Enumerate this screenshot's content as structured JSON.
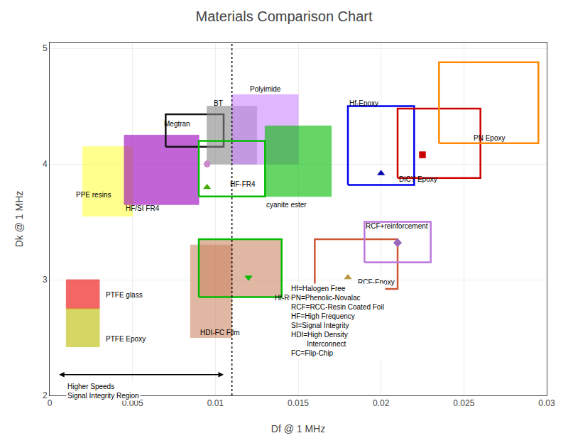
{
  "chart_data": {
    "type": "region",
    "title": "Materials Comparison Chart",
    "xlabel": "Df @ 1 MHz",
    "ylabel": "Dk @ 1 MHz",
    "xlim": [
      0,
      0.03
    ],
    "ylim": [
      2.0,
      5.05
    ],
    "xticks": [
      0,
      0.005,
      0.01,
      0.015,
      0.02,
      0.025,
      0.03
    ],
    "yticks": [
      2,
      3,
      4,
      5
    ],
    "grid": true,
    "vlines": [
      {
        "x": 0.011,
        "line_style": "dotted"
      }
    ],
    "arrows": [
      {
        "x_start": 0.0005,
        "x_end": 0.0105,
        "y": 2.18
      }
    ],
    "annotations": [
      {
        "text": "Higher Speeds\nSignal Integrity Region",
        "x": 0.001,
        "y": 2.12
      },
      {
        "text": "Hf=Halogen Free\nPN=Phenolic-Novalac\nRCF=RCC-Resin Coated Foil\nHF=High Frequency\nSI=Signal Integrity\nHDI=High Density\n        Interconnect\nFC=Flip-Chip",
        "x": 0.0145,
        "y": 2.97
      }
    ],
    "series": [
      {
        "name": "PTFE glass",
        "label_x": 0.0033,
        "label_y": 2.82,
        "rects": [
          {
            "x0": 0.001,
            "y0": 2.75,
            "x1": 0.003,
            "y1": 3.0,
            "color": "#EE0000",
            "type": "filled"
          }
        ],
        "markers": []
      },
      {
        "name": "PTFE Epoxy",
        "label_x": 0.0033,
        "label_y": 2.44,
        "rects": [
          {
            "x0": 0.001,
            "y0": 2.42,
            "x1": 0.003,
            "y1": 2.75,
            "color": "#BBBB00",
            "type": "filled"
          }
        ],
        "markers": []
      },
      {
        "name": "PPE resins",
        "label_x": 0.0015,
        "label_y": 3.69,
        "rects": [
          {
            "x0": 0.002,
            "y0": 3.55,
            "x1": 0.005,
            "y1": 4.15,
            "color": "#FFFF44",
            "type": "filled"
          }
        ],
        "markers": []
      },
      {
        "name": "HF/SI FR4",
        "label_x": 0.0045,
        "label_y": 3.57,
        "rects": [
          {
            "x0": 0.0045,
            "y0": 3.65,
            "x1": 0.009,
            "y1": 4.25,
            "color": "#9900BB",
            "type": "filled"
          }
        ],
        "markers": []
      },
      {
        "name": "Megtran",
        "label_x": 0.0068,
        "label_y": 4.3,
        "rects": [
          {
            "x0": 0.007,
            "y0": 4.15,
            "x1": 0.0105,
            "y1": 4.43,
            "color": "#111111",
            "type": "outline"
          }
        ],
        "markers": []
      },
      {
        "name": "BT",
        "label_x": 0.0098,
        "label_y": 4.48,
        "rects": [
          {
            "x0": 0.0095,
            "y0": 4.0,
            "x1": 0.0125,
            "y1": 4.5,
            "color": "#888888",
            "type": "filled"
          }
        ],
        "markers": []
      },
      {
        "name": "Polyimide",
        "label_x": 0.012,
        "label_y": 4.6,
        "rects": [
          {
            "x0": 0.011,
            "y0": 4.0,
            "x1": 0.015,
            "y1": 4.6,
            "color": "#CC88FF",
            "type": "filled"
          }
        ],
        "markers": []
      },
      {
        "name": "HF-FR4",
        "label_x": 0.0108,
        "label_y": 3.78,
        "rects": [
          {
            "x0": 0.009,
            "y0": 3.72,
            "x1": 0.013,
            "y1": 4.2,
            "color": "#00BB00",
            "type": "outline"
          }
        ],
        "markers": [
          {
            "x": 0.0095,
            "y": 4.0,
            "marker": "circle",
            "color": "#CC88CC"
          },
          {
            "x": 0.0095,
            "y": 3.8,
            "marker": "triangle-up",
            "color": "#44AA00"
          }
        ]
      },
      {
        "name": "cyanite ester",
        "label_x": 0.013,
        "label_y": 3.6,
        "rects": [
          {
            "x0": 0.013,
            "y0": 3.72,
            "x1": 0.017,
            "y1": 4.33,
            "color": "#00BB00",
            "type": "filled"
          }
        ],
        "markers": []
      },
      {
        "name": "HDI-FC Film",
        "label_x": 0.009,
        "label_y": 2.5,
        "rects": [
          {
            "x0": 0.0085,
            "y0": 2.5,
            "x1": 0.011,
            "y1": 3.3,
            "color": "#CC8866",
            "type": "filled"
          }
        ],
        "markers": []
      },
      {
        "name": "Hf-RCF",
        "label_x": 0.0135,
        "label_y": 2.8,
        "rects": [
          {
            "x0": 0.009,
            "y0": 2.85,
            "x1": 0.014,
            "y1": 3.35,
            "color": "#CC8866",
            "type": "filled"
          },
          {
            "x0": 0.009,
            "y0": 2.85,
            "x1": 0.014,
            "y1": 3.35,
            "color": "#00BB00",
            "type": "outline"
          }
        ],
        "markers": [
          {
            "x": 0.012,
            "y": 3.02,
            "marker": "triangle-down",
            "color": "#00BB00"
          }
        ]
      },
      {
        "name": "RCF-Epoxy",
        "label_x": 0.0185,
        "label_y": 2.93,
        "rects": [
          {
            "x0": 0.016,
            "y0": 2.92,
            "x1": 0.021,
            "y1": 3.35,
            "color": "#CC5533",
            "type": "outline"
          }
        ],
        "markers": [
          {
            "x": 0.018,
            "y": 3.02,
            "marker": "triangle-up",
            "color": "#BB9944"
          }
        ]
      },
      {
        "name": "RCF+reinforcement",
        "label_x": 0.019,
        "label_y": 3.42,
        "rects": [
          {
            "x0": 0.019,
            "y0": 3.15,
            "x1": 0.023,
            "y1": 3.5,
            "color": "#BB77DD",
            "type": "outline"
          }
        ],
        "markers": [
          {
            "x": 0.021,
            "y": 3.32,
            "marker": "diamond",
            "color": "#9966BB"
          }
        ]
      },
      {
        "name": "Hf-Epoxy",
        "label_x": 0.018,
        "label_y": 4.48,
        "rects": [
          {
            "x0": 0.018,
            "y0": 3.82,
            "x1": 0.022,
            "y1": 4.5,
            "color": "#0000EE",
            "type": "outline"
          }
        ],
        "markers": [
          {
            "x": 0.02,
            "y": 3.92,
            "marker": "triangle-up",
            "color": "#0000AA"
          }
        ]
      },
      {
        "name": "DiCY Epoxy",
        "label_x": 0.021,
        "label_y": 3.82,
        "rects": [
          {
            "x0": 0.021,
            "y0": 3.88,
            "x1": 0.026,
            "y1": 4.48,
            "color": "#CC0000",
            "type": "outline"
          }
        ],
        "markers": [
          {
            "x": 0.0225,
            "y": 4.08,
            "marker": "square",
            "color": "#CC0000"
          }
        ]
      },
      {
        "name": "PN Epoxy",
        "label_x": 0.0255,
        "label_y": 4.18,
        "rects": [
          {
            "x0": 0.0235,
            "y0": 4.18,
            "x1": 0.0295,
            "y1": 4.88,
            "color": "#FF8800",
            "type": "outline"
          }
        ],
        "markers": []
      }
    ]
  }
}
